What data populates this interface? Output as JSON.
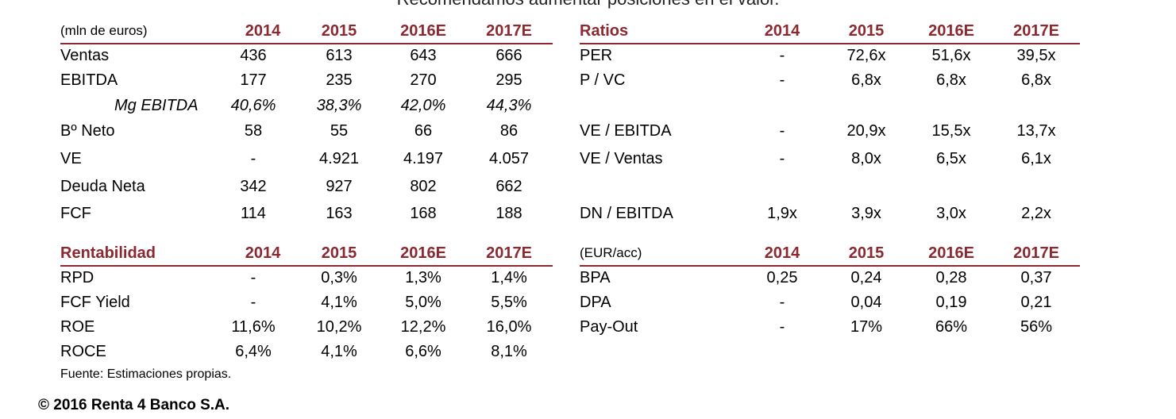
{
  "top_title": "Recomendamos aumentar posiciones en el valor.",
  "tables": {
    "financials": {
      "title": "(mln de euros)",
      "years": [
        "2014",
        "2015",
        "2016E",
        "2017E"
      ],
      "rows": [
        {
          "label": "Ventas",
          "values": [
            "436",
            "613",
            "643",
            "666"
          ]
        },
        {
          "label": "EBITDA",
          "values": [
            "177",
            "235",
            "270",
            "295"
          ]
        },
        {
          "label": "Mg EBITDA",
          "values": [
            "40,6%",
            "38,3%",
            "42,0%",
            "44,3%"
          ]
        },
        {
          "label": "Bº Neto",
          "values": [
            "58",
            "55",
            "66",
            "86"
          ]
        },
        {
          "label": "VE",
          "values": [
            "-",
            "4.921",
            "4.197",
            "4.057"
          ]
        },
        {
          "label": "Deuda Neta",
          "values": [
            "342",
            "927",
            "802",
            "662"
          ]
        },
        {
          "label": "FCF",
          "values": [
            "114",
            "163",
            "168",
            "188"
          ]
        }
      ]
    },
    "ratios": {
      "title": "Ratios",
      "years": [
        "2014",
        "2015",
        "2016E",
        "2017E"
      ],
      "rows": [
        {
          "label": "PER",
          "values": [
            "-",
            "72,6x",
            "51,6x",
            "39,5x"
          ]
        },
        {
          "label": "P / VC",
          "values": [
            "-",
            "6,8x",
            "6,8x",
            "6,8x"
          ]
        },
        {
          "label": "VE / EBITDA",
          "values": [
            "-",
            "20,9x",
            "15,5x",
            "13,7x"
          ]
        },
        {
          "label": "VE / Ventas",
          "values": [
            "-",
            "8,0x",
            "6,5x",
            "6,1x"
          ]
        },
        {
          "label": "DN / EBITDA",
          "values": [
            "1,9x",
            "3,9x",
            "3,0x",
            "2,2x"
          ]
        }
      ]
    },
    "rentabilidad": {
      "title": "Rentabilidad",
      "years": [
        "2014",
        "2015",
        "2016E",
        "2017E"
      ],
      "rows": [
        {
          "label": "RPD",
          "values": [
            "-",
            "0,3%",
            "1,3%",
            "1,4%"
          ]
        },
        {
          "label": "FCF Yield",
          "values": [
            "-",
            "4,1%",
            "5,0%",
            "5,5%"
          ]
        },
        {
          "label": "ROE",
          "values": [
            "11,6%",
            "10,2%",
            "12,2%",
            "16,0%"
          ]
        },
        {
          "label": "ROCE",
          "values": [
            "6,4%",
            "4,1%",
            "6,6%",
            "8,1%"
          ]
        }
      ]
    },
    "per_share": {
      "title": "(EUR/acc)",
      "years": [
        "2014",
        "2015",
        "2016E",
        "2017E"
      ],
      "rows": [
        {
          "label": "BPA",
          "values": [
            "0,25",
            "0,24",
            "0,28",
            "0,37"
          ]
        },
        {
          "label": "DPA",
          "values": [
            "-",
            "0,04",
            "0,19",
            "0,21"
          ]
        },
        {
          "label": "Pay-Out",
          "values": [
            "-",
            "17%",
            "66%",
            "56%"
          ]
        }
      ]
    }
  },
  "source": "Fuente: Estimaciones propias.",
  "copyright": "© 2016 Renta 4 Banco S.A."
}
